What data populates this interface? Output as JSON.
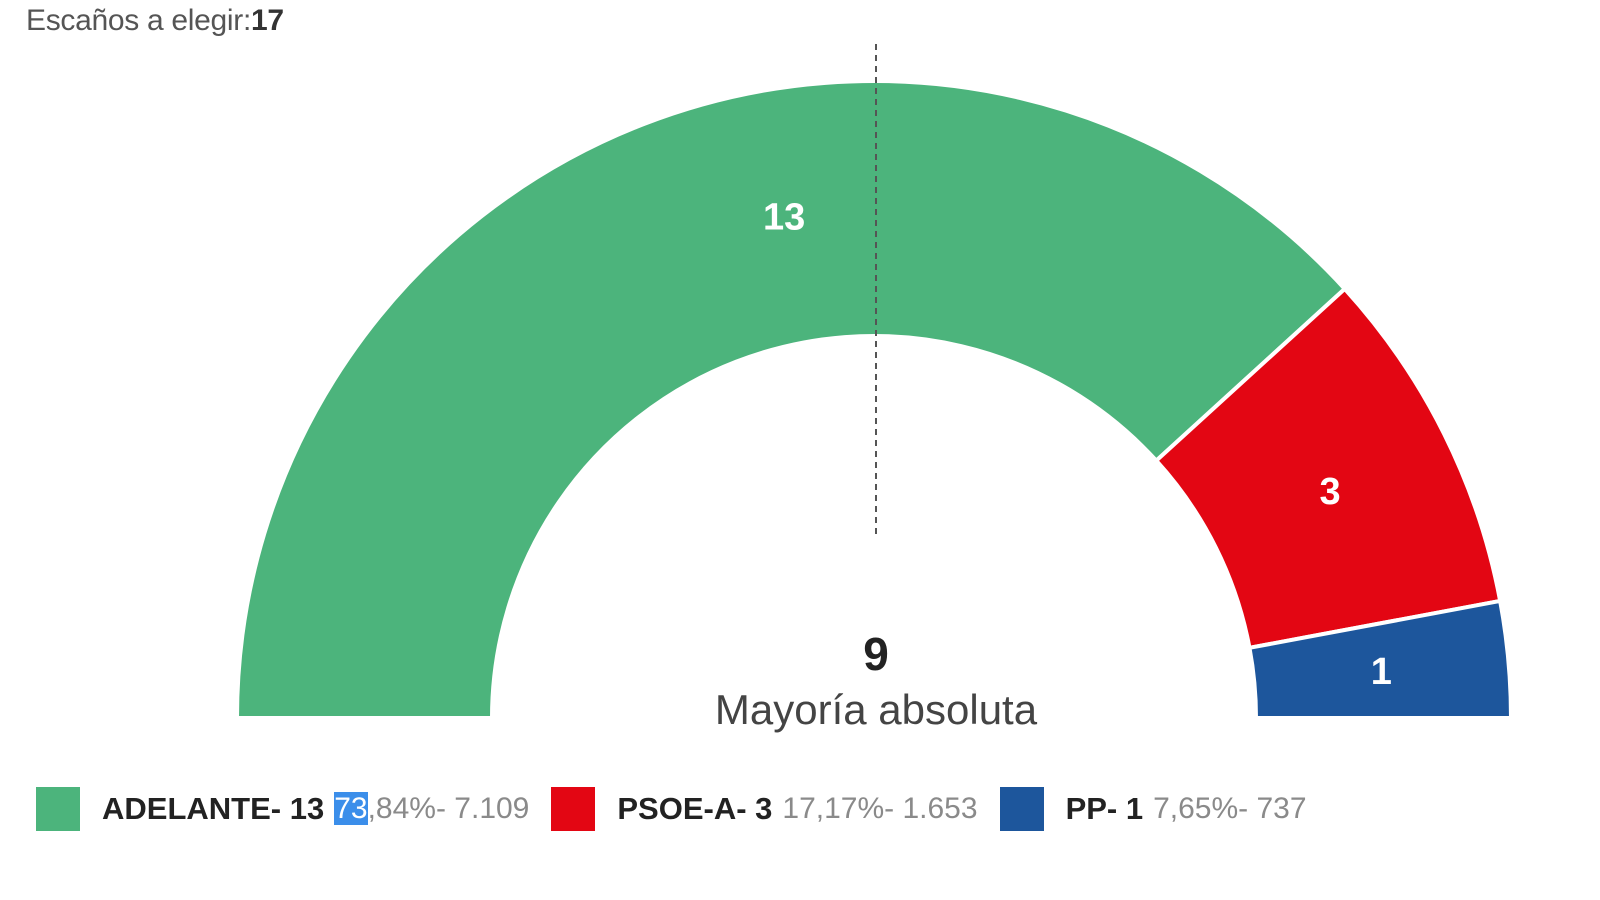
{
  "header": {
    "label": "Escaños a elegir:",
    "seats": "17"
  },
  "majority": {
    "value": "9",
    "label": "Mayoría absoluta"
  },
  "chart_data": {
    "type": "pie",
    "title": "",
    "total_seats": 17,
    "majority_seats": 9,
    "categories": [
      "ADELANTE",
      "PSOE-A",
      "PP"
    ],
    "values": [
      13,
      3,
      1
    ],
    "series": [
      {
        "name": "ADELANTE",
        "seats": 13,
        "seats_label": "13",
        "percent": "73,84%",
        "votes": "7.109",
        "color": "#4cb47c"
      },
      {
        "name": "PSOE-A",
        "seats": 3,
        "seats_label": "3",
        "percent": "17,17%",
        "votes": "1.653",
        "color": "#e30613"
      },
      {
        "name": "PP",
        "seats": 1,
        "seats_label": "1",
        "percent": "7,65%",
        "votes": "737",
        "color": "#1d569c"
      }
    ]
  },
  "legend": [
    {
      "name": "ADELANTE- 13",
      "pct_hl": "73",
      "pct_rest": ",84%",
      "votes": "- 7.109"
    },
    {
      "name": "PSOE-A- 3",
      "pct_hl": "",
      "pct_rest": "17,17%",
      "votes": "- 1.653"
    },
    {
      "name": "PP- 1",
      "pct_hl": "",
      "pct_rest": "7,65%",
      "votes": "- 737"
    }
  ]
}
